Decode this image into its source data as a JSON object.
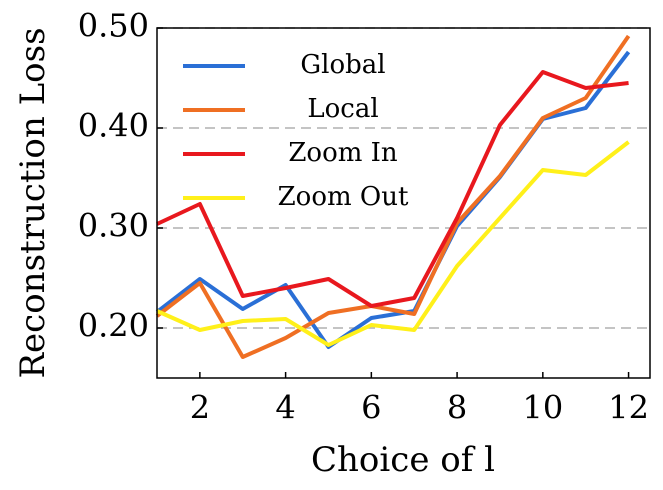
{
  "chart_data": {
    "type": "line",
    "x_label": "Choice of l",
    "y_label": "Reconstruction Loss",
    "x": [
      1,
      2,
      3,
      4,
      5,
      6,
      7,
      8,
      9,
      10,
      11,
      12
    ],
    "series": [
      {
        "name": "Global",
        "color": "#2a6fd6",
        "values": [
          0.216,
          0.249,
          0.219,
          0.243,
          0.181,
          0.21,
          0.217,
          0.302,
          0.351,
          0.409,
          0.42,
          0.476
        ]
      },
      {
        "name": "Local",
        "color": "#ef6f23",
        "values": [
          0.212,
          0.245,
          0.171,
          0.19,
          0.215,
          0.222,
          0.214,
          0.305,
          0.352,
          0.41,
          0.43,
          0.492
        ]
      },
      {
        "name": "Zoom In",
        "color": "#e8181e",
        "values": [
          0.304,
          0.324,
          0.232,
          0.24,
          0.249,
          0.222,
          0.23,
          0.31,
          0.403,
          0.456,
          0.44,
          0.445
        ]
      },
      {
        "name": "Zoom Out",
        "color": "#fff01a",
        "values": [
          0.217,
          0.198,
          0.207,
          0.209,
          0.183,
          0.203,
          0.198,
          0.262,
          0.31,
          0.358,
          0.353,
          0.386
        ]
      }
    ],
    "xlim": [
      1,
      12.5
    ],
    "xticks": [
      2,
      4,
      6,
      8,
      10,
      12
    ],
    "ylim": [
      0.15,
      0.5
    ],
    "yticks": [
      {
        "value": 0.2,
        "label": "0.20"
      },
      {
        "value": 0.3,
        "label": "0.30"
      },
      {
        "value": 0.4,
        "label": "0.40"
      },
      {
        "value": 0.5,
        "label": "0.50"
      }
    ],
    "grid": true,
    "legend_position": "upper-left"
  }
}
